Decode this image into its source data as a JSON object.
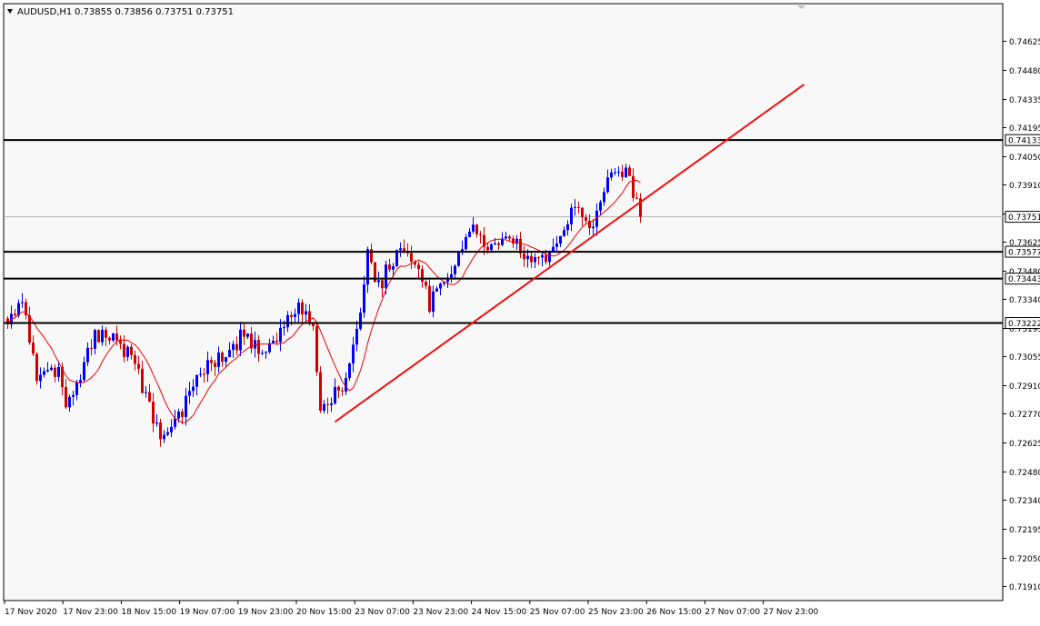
{
  "chart_header": {
    "menu_icon": "triangle-down-icon",
    "symbol_label": "AUDUSD,H1",
    "ohlc_text": "0.73855 0.73856 0.73751 0.73751"
  },
  "colors": {
    "background": "#ffffff",
    "plot_background": "#f8f8f8",
    "bull_candle": "#0000ff",
    "bear_candle": "#d40000",
    "moving_average": "#ee0000",
    "trendline": "#ee1111",
    "level_line": "#000000",
    "bid_line": "#b4b4b4",
    "axis_text": "#000000"
  },
  "chart_data": {
    "type": "candlestick",
    "title": "",
    "xlabel": "",
    "ylabel": "",
    "timeframe": "H1",
    "ylim": [
      0.7184,
      0.7474
    ],
    "y_ticks": [
      "0.74625",
      "0.74480",
      "0.74335",
      "0.74195",
      "0.74050",
      "0.73910",
      "0.73765",
      "0.73625",
      "0.73480",
      "0.73340",
      "0.73195",
      "0.73055",
      "0.72910",
      "0.72770",
      "0.72625",
      "0.72480",
      "0.72340",
      "0.72195",
      "0.72050",
      "0.71910"
    ],
    "x_labels": [
      "17 Nov 2020",
      "17 Nov 23:00",
      "18 Nov 15:00",
      "19 Nov 07:00",
      "19 Nov 23:00",
      "20 Nov 15:00",
      "23 Nov 07:00",
      "23 Nov 23:00",
      "24 Nov 15:00",
      "25 Nov 07:00",
      "25 Nov 23:00",
      "26 Nov 15:00",
      "27 Nov 07:00",
      "27 Nov 23:00"
    ],
    "current_price": "0.73751",
    "horizontal_levels": [
      {
        "price": 0.74133,
        "label": "0.74133"
      },
      {
        "price": 0.73577,
        "label": "0.73577"
      },
      {
        "price": 0.73443,
        "label": "0.73443"
      },
      {
        "price": 0.73222,
        "label": "0.73222"
      }
    ],
    "trendline": {
      "start": {
        "bar": 90,
        "price": 0.7273
      },
      "end": {
        "bar": 219,
        "price": 0.7441
      }
    },
    "moving_average_period": 10,
    "path_anchors": [
      [
        0,
        0.7322
      ],
      [
        4,
        0.7335
      ],
      [
        8,
        0.7295
      ],
      [
        14,
        0.7296
      ],
      [
        16,
        0.7276
      ],
      [
        24,
        0.7318
      ],
      [
        30,
        0.7313
      ],
      [
        35,
        0.7303
      ],
      [
        42,
        0.7263
      ],
      [
        48,
        0.7278
      ],
      [
        52,
        0.7298
      ],
      [
        58,
        0.7303
      ],
      [
        64,
        0.7315
      ],
      [
        70,
        0.731
      ],
      [
        76,
        0.732
      ],
      [
        80,
        0.7332
      ],
      [
        84,
        0.7318
      ],
      [
        86,
        0.728
      ],
      [
        88,
        0.7284
      ],
      [
        92,
        0.7292
      ],
      [
        96,
        0.7316
      ],
      [
        99,
        0.7356
      ],
      [
        102,
        0.734
      ],
      [
        108,
        0.7361
      ],
      [
        112,
        0.7353
      ],
      [
        116,
        0.7331
      ],
      [
        120,
        0.7342
      ],
      [
        124,
        0.7358
      ],
      [
        128,
        0.7367
      ],
      [
        132,
        0.7362
      ],
      [
        138,
        0.7363
      ],
      [
        142,
        0.7358
      ],
      [
        148,
        0.7355
      ],
      [
        152,
        0.7363
      ],
      [
        156,
        0.7384
      ],
      [
        160,
        0.737
      ],
      [
        164,
        0.7387
      ],
      [
        168,
        0.7402
      ],
      [
        172,
        0.7389
      ],
      [
        174,
        0.7378
      ]
    ],
    "bar_count": 175,
    "bar_spacing_px": 4
  }
}
